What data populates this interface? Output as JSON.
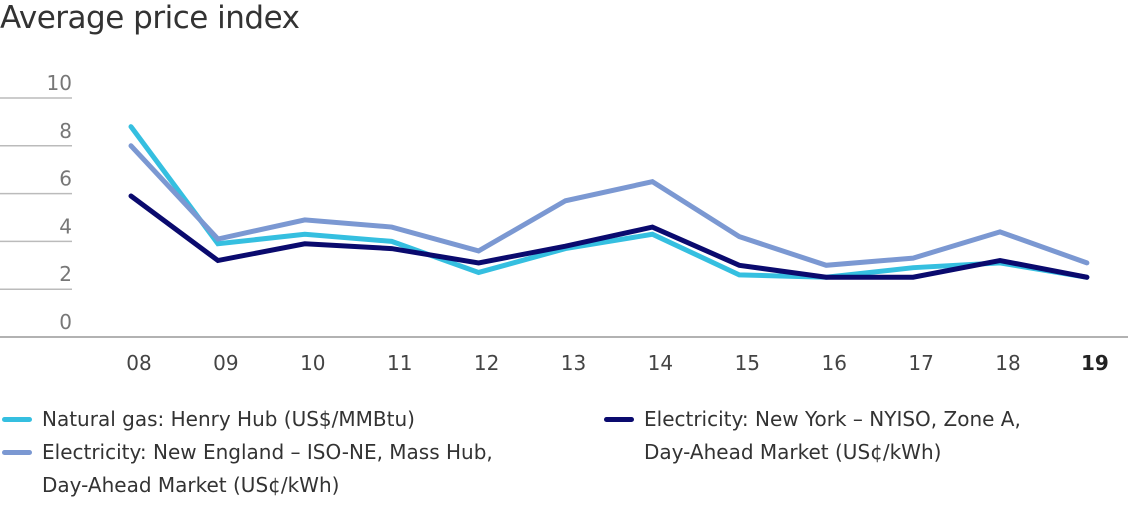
{
  "chart_data": {
    "type": "line",
    "title": "Average price index",
    "xlabel": "",
    "ylabel": "",
    "categories": [
      "08",
      "09",
      "10",
      "11",
      "12",
      "13",
      "14",
      "15",
      "16",
      "17",
      "18",
      "19"
    ],
    "ylim": [
      0,
      10
    ],
    "yticks": [
      "0",
      "2",
      "4",
      "6",
      "8",
      "10"
    ],
    "grid": true,
    "legend_position": "bottom",
    "series": [
      {
        "name": "Natural gas: Henry Hub (US$/MMBtu)",
        "color": "#35bfe0",
        "values": [
          8.8,
          3.9,
          4.3,
          4.0,
          2.7,
          3.7,
          4.3,
          2.6,
          2.5,
          2.9,
          3.1,
          2.5
        ]
      },
      {
        "name": "Electricity: New England – ISO-NE, Mass Hub, Day-Ahead Market (US¢/kWh)",
        "color": "#7b98d2",
        "values": [
          8.0,
          4.1,
          4.9,
          4.6,
          3.6,
          5.7,
          6.5,
          4.2,
          3.0,
          3.3,
          4.4,
          3.1
        ]
      },
      {
        "name": "Electricity: New York – NYISO, Zone A, Day-Ahead Market (US¢/kWh)",
        "color": "#0a0a6e",
        "values": [
          5.9,
          3.2,
          3.9,
          3.7,
          3.1,
          3.8,
          4.6,
          3.0,
          2.5,
          2.5,
          3.2,
          2.5
        ]
      }
    ]
  },
  "legend": {
    "col1": [
      {
        "lines": [
          "Natural gas: Henry Hub (US$/MMBtu)"
        ],
        "color": "#35bfe0"
      },
      {
        "lines": [
          "Electricity: New England – ISO-NE, Mass Hub,",
          "Day-Ahead Market (US¢/kWh)"
        ],
        "color": "#7b98d2"
      }
    ],
    "col2": [
      {
        "lines": [
          "Electricity: New York – NYISO, Zone A,",
          "Day-Ahead Market (US¢/kWh)"
        ],
        "color": "#0a0a6e"
      }
    ]
  }
}
